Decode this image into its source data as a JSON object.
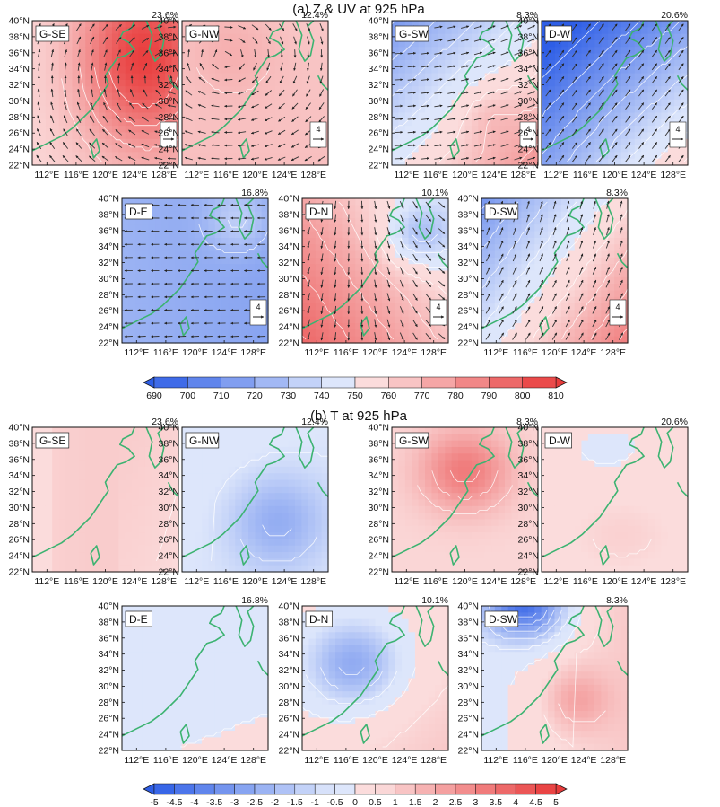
{
  "sections": [
    {
      "id": "a",
      "title": "(a) Z & UV at 925 hPa",
      "colorbar_ticks": [
        "690",
        "700",
        "710",
        "720",
        "730",
        "740",
        "750",
        "760",
        "770",
        "780",
        "790",
        "800",
        "810"
      ]
    },
    {
      "id": "b",
      "title": "(b) T at 925 hPa",
      "colorbar_ticks": [
        "-5",
        "-4.5",
        "-4",
        "-3.5",
        "-3",
        "-2.5",
        "-2",
        "-1.5",
        "-1",
        "-0.5",
        "0",
        "0.5",
        "1",
        "1.5",
        "2",
        "2.5",
        "3",
        "3.5",
        "4",
        "4.5",
        "5"
      ]
    }
  ],
  "lat_ticks": [
    "40°N",
    "38°N",
    "36°N",
    "34°N",
    "32°N",
    "30°N",
    "28°N",
    "26°N",
    "24°N",
    "22°N"
  ],
  "lon_ticks": [
    "112°E",
    "116°E",
    "120°E",
    "124°E",
    "128°E"
  ],
  "wind_ref_label": "4",
  "panels_a": [
    {
      "label": "G-SE",
      "pct": "23.6%"
    },
    {
      "label": "G-NW",
      "pct": "12.4%"
    },
    {
      "label": "G-SW",
      "pct": "8.3%"
    },
    {
      "label": "D-W",
      "pct": "20.6%"
    },
    {
      "label": "D-E",
      "pct": "16.8%"
    },
    {
      "label": "D-N",
      "pct": "10.1%"
    },
    {
      "label": "D-SW",
      "pct": "8.3%"
    }
  ],
  "panels_b": [
    {
      "label": "G-SE",
      "pct": "23.6%"
    },
    {
      "label": "G-NW",
      "pct": "12.4%"
    },
    {
      "label": "G-SW",
      "pct": "8.3%"
    },
    {
      "label": "D-W",
      "pct": "20.6%"
    },
    {
      "label": "D-E",
      "pct": "16.8%"
    },
    {
      "label": "D-N",
      "pct": "10.1%"
    },
    {
      "label": "D-SW",
      "pct": "8.3%"
    }
  ],
  "colors": {
    "blue_deep": "#2e5ee6",
    "blue_light": "#dde6fb",
    "white": "#ffffff",
    "red_light": "#fbdcdc",
    "red_deep": "#e83b3b",
    "coast": "#3cb371",
    "arrow": "#333333"
  },
  "chart_data": [
    {
      "type": "heatmap",
      "title": "(a) Z & UV at 925 hPa",
      "xlabel": "",
      "ylabel": "",
      "x_ticks": [
        "112°E",
        "116°E",
        "120°E",
        "124°E",
        "128°E"
      ],
      "y_ticks": [
        "22°N",
        "24°N",
        "26°N",
        "28°N",
        "30°N",
        "32°N",
        "34°N",
        "36°N",
        "38°N",
        "40°N"
      ],
      "xlim": [
        110,
        130
      ],
      "ylim": [
        22,
        40
      ],
      "colorbar": {
        "min": 690,
        "max": 810,
        "step": 10,
        "colormap": "blue-white-red"
      },
      "reference_vector": 4,
      "panels": [
        {
          "name": "G-SE",
          "frequency": "23.6%",
          "pattern": "high over Yellow Sea / East China Sea, anticyclonic flow",
          "level_range": [
            760,
            810
          ]
        },
        {
          "name": "G-NW",
          "frequency": "12.4%",
          "pattern": "high over northern China, elevated heights everywhere",
          "level_range": [
            755,
            780
          ]
        },
        {
          "name": "G-SW",
          "frequency": "8.3%",
          "pattern": "low to the north, high to the south-east",
          "level_range": [
            700,
            775
          ]
        },
        {
          "name": "D-W",
          "frequency": "20.6%",
          "pattern": "low over continent, higher heights to the south-east",
          "level_range": [
            690,
            770
          ]
        },
        {
          "name": "D-E",
          "frequency": "16.8%",
          "pattern": "low heights across domain, easterly flow",
          "level_range": [
            700,
            750
          ]
        },
        {
          "name": "D-N",
          "frequency": "10.1%",
          "pattern": "high to the west, low to the east",
          "level_range": [
            730,
            790
          ]
        },
        {
          "name": "D-SW",
          "frequency": "8.3%",
          "pattern": "low to the north-west, high to the south-east",
          "level_range": [
            725,
            810
          ]
        }
      ]
    },
    {
      "type": "heatmap",
      "title": "(b) T at 925 hPa",
      "xlabel": "",
      "ylabel": "",
      "x_ticks": [
        "112°E",
        "116°E",
        "120°E",
        "124°E",
        "128°E"
      ],
      "y_ticks": [
        "22°N",
        "24°N",
        "26°N",
        "28°N",
        "30°N",
        "32°N",
        "34°N",
        "36°N",
        "38°N",
        "40°N"
      ],
      "xlim": [
        110,
        130
      ],
      "ylim": [
        22,
        40
      ],
      "colorbar": {
        "min": -5,
        "max": 5,
        "step": 0.5,
        "colormap": "blue-white-red"
      },
      "panels": [
        {
          "name": "G-SE",
          "frequency": "23.6%",
          "anomaly_range": [
            -0.5,
            1.0
          ]
        },
        {
          "name": "G-NW",
          "frequency": "12.4%",
          "anomaly_range": [
            -3.0,
            0.5
          ]
        },
        {
          "name": "G-SW",
          "frequency": "8.3%",
          "anomaly_range": [
            0,
            3.5
          ]
        },
        {
          "name": "D-W",
          "frequency": "20.6%",
          "anomaly_range": [
            -0.5,
            1.0
          ]
        },
        {
          "name": "D-E",
          "frequency": "16.8%",
          "anomaly_range": [
            -0.5,
            0.5
          ]
        },
        {
          "name": "D-N",
          "frequency": "10.1%",
          "anomaly_range": [
            -3.5,
            1.5
          ]
        },
        {
          "name": "D-SW",
          "frequency": "8.3%",
          "anomaly_range": [
            -4.5,
            2.0
          ]
        }
      ]
    }
  ]
}
